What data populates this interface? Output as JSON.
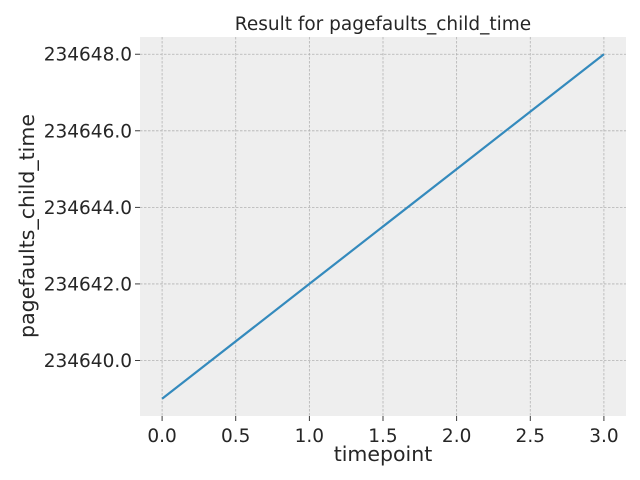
{
  "chart_data": {
    "type": "line",
    "title": "Result for pagefaults_child_time",
    "xlabel": "timepoint",
    "ylabel": "pagefaults_child_time",
    "x": [
      0,
      1,
      2,
      3
    ],
    "series": [
      {
        "values": [
          234639,
          234642,
          234645,
          234648
        ],
        "color": "#348ABD"
      }
    ],
    "xlim": [
      -0.15,
      3.15
    ],
    "ylim": [
      234638.55,
      234648.45
    ],
    "xticks": [
      0,
      0.5,
      1,
      1.5,
      2,
      2.5,
      3
    ],
    "xtick_labels": [
      "0.0",
      "0.5",
      "1.0",
      "1.5",
      "2.0",
      "2.5",
      "3.0"
    ],
    "yticks": [
      234640,
      234642,
      234644,
      234646,
      234648
    ],
    "ytick_labels": [
      "234640.0",
      "234642.0",
      "234644.0",
      "234646.0",
      "234648.0"
    ],
    "grid": true,
    "style": "bmh",
    "plot_background": "#EEEEEE",
    "grid_color": "#B2B2B2",
    "line_color": "#348ABD"
  }
}
